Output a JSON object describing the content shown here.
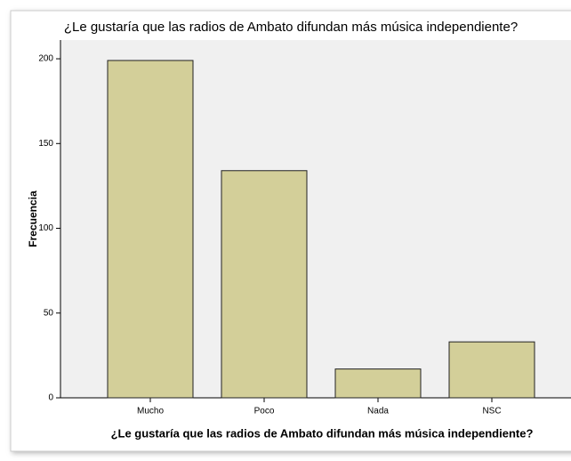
{
  "chart_data": {
    "type": "bar",
    "title": "¿Le gustaría que las radios de Ambato difundan más música independiente?",
    "x_label": "¿Le gustaría que las radios de Ambato difundan más música independiente?",
    "y_label": "Frecuencia",
    "categories": [
      "Mucho",
      "Poco",
      "Nada",
      "NSC"
    ],
    "values": [
      199,
      134,
      17,
      33
    ],
    "color": "#d3cf99",
    "ylim": [
      0,
      210
    ],
    "yticks": [
      0,
      50,
      100,
      150,
      200
    ],
    "grid": false
  }
}
